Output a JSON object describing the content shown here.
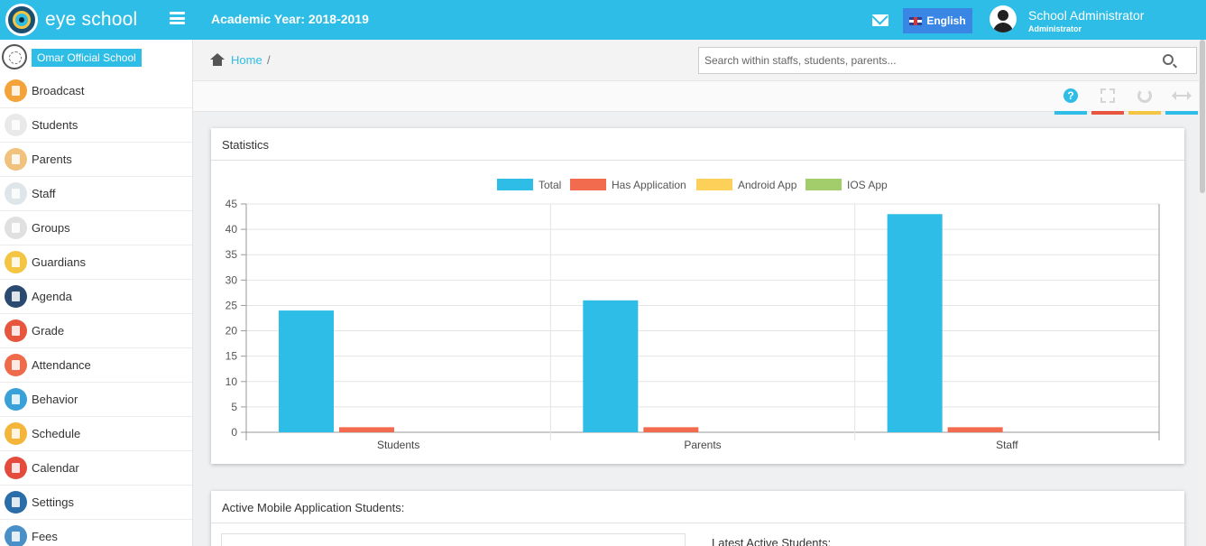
{
  "app": {
    "logo_text": "eye school",
    "academic_year": "Academic Year: 2018-2019"
  },
  "header": {
    "language": "English",
    "user_name": "School Administrator",
    "user_role": "Administrator"
  },
  "sidebar": {
    "school": "Omar Official School",
    "items": [
      {
        "label": "Broadcast",
        "color": "#f4a33a"
      },
      {
        "label": "Students",
        "color": "#e9e9e9"
      },
      {
        "label": "Parents",
        "color": "#f1c27d"
      },
      {
        "label": "Staff",
        "color": "#dfe6ea"
      },
      {
        "label": "Groups",
        "color": "#e0e0e0"
      },
      {
        "label": "Guardians",
        "color": "#f4c542"
      },
      {
        "label": "Agenda",
        "color": "#2b4a6f"
      },
      {
        "label": "Grade",
        "color": "#e8553f"
      },
      {
        "label": "Attendance",
        "color": "#ef6a4b"
      },
      {
        "label": "Behavior",
        "color": "#3aa0d8"
      },
      {
        "label": "Schedule",
        "color": "#f4b63a"
      },
      {
        "label": "Calendar",
        "color": "#e54b3c"
      },
      {
        "label": "Settings",
        "color": "#2b6da8"
      },
      {
        "label": "Fees",
        "color": "#4a90c8"
      }
    ]
  },
  "breadcrumb": {
    "home": "Home",
    "separator": "/"
  },
  "search": {
    "placeholder": "Search within staffs, students, parents..."
  },
  "toolbar": {
    "help_glyph": "?",
    "colors": {
      "help": "#2ebde6",
      "expand": "#e8553f",
      "refresh": "#f4c542",
      "width": "#2ebde6"
    },
    "icons": [
      "help-icon",
      "expand-icon",
      "refresh-icon",
      "width-icon"
    ]
  },
  "panels": {
    "statistics_title": "Statistics",
    "active_title": "Active Mobile Application Students:",
    "latest_title": "Latest Active Students:"
  },
  "chart_data": {
    "type": "bar",
    "categories": [
      "Students",
      "Parents",
      "Staff"
    ],
    "series": [
      {
        "name": "Total",
        "color": "#2ebde6",
        "values": [
          24,
          26,
          43
        ]
      },
      {
        "name": "Has Application",
        "color": "#f26b4f",
        "values": [
          1,
          1,
          1
        ]
      },
      {
        "name": "Android App",
        "color": "#fdd05a",
        "values": [
          0,
          0,
          0
        ]
      },
      {
        "name": "IOS App",
        "color": "#a3cd6a",
        "values": [
          0,
          0,
          0
        ]
      }
    ],
    "ylim": [
      0,
      45
    ],
    "yticks": [
      0,
      5,
      10,
      15,
      20,
      25,
      30,
      35,
      40,
      45
    ],
    "grid": true,
    "legend": "top-center"
  }
}
